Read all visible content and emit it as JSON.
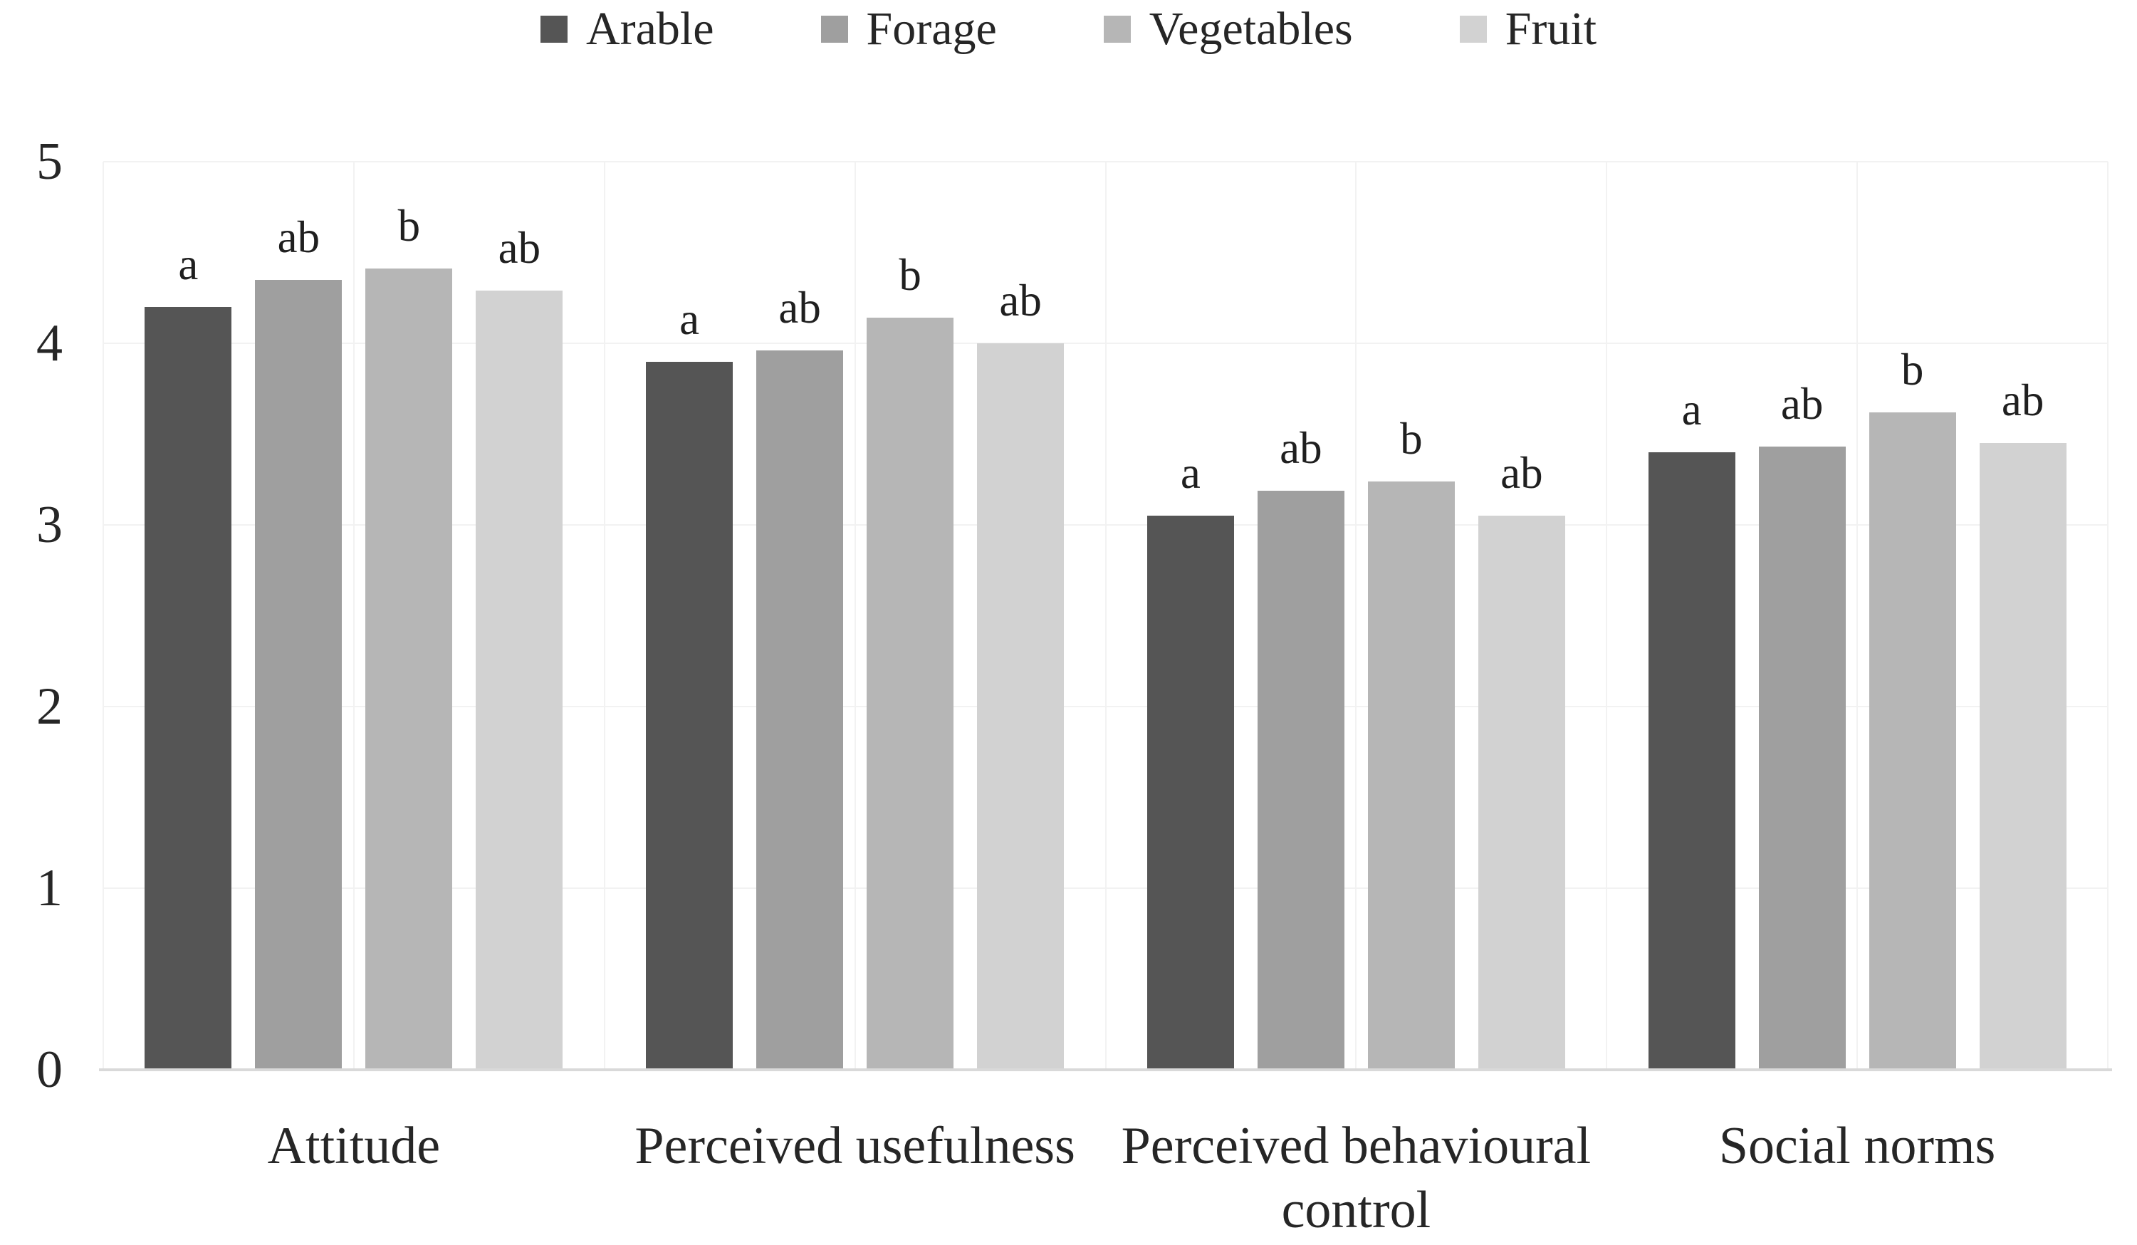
{
  "chart_data": {
    "type": "bar",
    "title": "",
    "xlabel": "",
    "ylabel": "",
    "ylim": [
      0,
      5
    ],
    "yticks": [
      0,
      1,
      2,
      3,
      4,
      5
    ],
    "grid": "horizontal and vertical light gridlines",
    "legend_position": "top-center",
    "background": "#ffffff",
    "text_color": "#262626",
    "gridline_color": "#f2f2f2",
    "axis_line_color": "#d9d9d9",
    "categories": [
      "Attitude",
      "Perceived usefulness",
      "Perceived behavioural control",
      "Social norms"
    ],
    "series": [
      {
        "name": "Arable",
        "color": "#555555",
        "values": [
          4.2,
          3.9,
          3.05,
          3.4
        ]
      },
      {
        "name": "Forage",
        "color": "#9f9f9f",
        "values": [
          4.35,
          3.96,
          3.19,
          3.43
        ]
      },
      {
        "name": "Vegetables",
        "color": "#b6b6b6",
        "values": [
          4.41,
          4.14,
          3.24,
          3.62
        ]
      },
      {
        "name": "Fruit",
        "color": "#d2d2d2",
        "values": [
          4.29,
          4.0,
          3.05,
          3.45
        ]
      }
    ],
    "significance_letters": [
      [
        "a",
        "ab",
        "b",
        "ab"
      ],
      [
        "a",
        "ab",
        "b",
        "ab"
      ],
      [
        "a",
        "ab",
        "b",
        "ab"
      ],
      [
        "a",
        "ab",
        "b",
        "ab"
      ]
    ]
  }
}
